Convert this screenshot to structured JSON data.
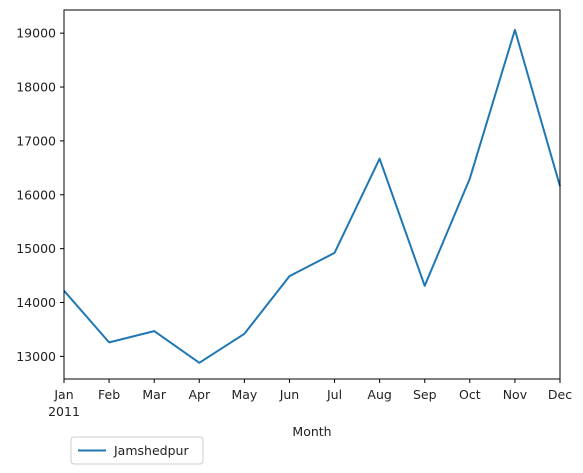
{
  "chart_data": {
    "type": "line",
    "title": "",
    "xlabel": "Month",
    "ylabel": "",
    "categories": [
      "Jan",
      "Feb",
      "Mar",
      "Apr",
      "May",
      "Jun",
      "Jul",
      "Aug",
      "Sep",
      "Oct",
      "Nov",
      "Dec"
    ],
    "year_label": "2011",
    "ylim": [
      12580,
      19430
    ],
    "yticks": [
      13000,
      14000,
      15000,
      16000,
      17000,
      18000,
      19000
    ],
    "grid": false,
    "legend_position": "below-left",
    "series": [
      {
        "name": "Jamshedpur",
        "color": "#1f77b4",
        "values": [
          14220,
          13260,
          13470,
          12880,
          13420,
          14490,
          14920,
          16670,
          14310,
          16300,
          19060,
          16160
        ]
      }
    ]
  }
}
